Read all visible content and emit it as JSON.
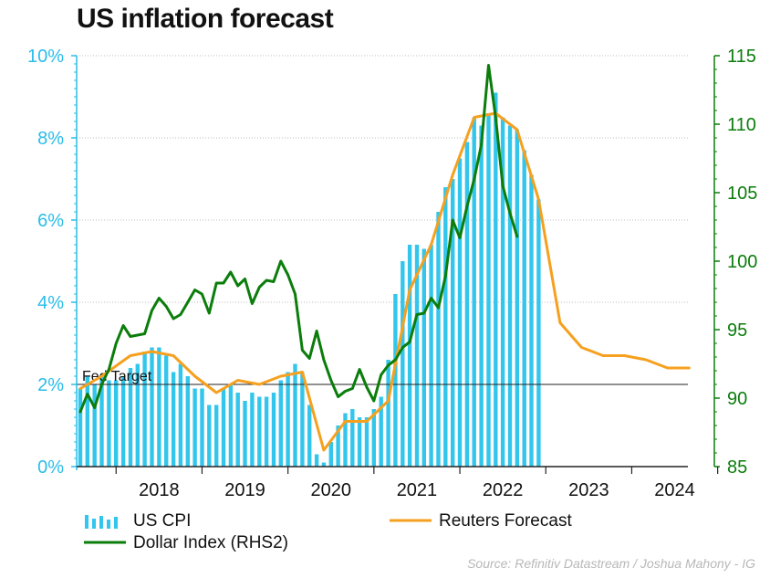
{
  "title": "US inflation forecast",
  "source": "Source: Refinitiv Datastream / Joshua Mahony - IG",
  "colors": {
    "cpi": "#33c6ec",
    "forecast": "#f6a01f",
    "dollar": "#0b7d0b",
    "left_axis": "#29bdea",
    "right_axis": "#0b7d0b",
    "fed_line": "#222222",
    "grid": "#bbbbbb"
  },
  "legend": {
    "cpi": "US CPI",
    "forecast": "Reuters Forecast",
    "dollar": "Dollar Index (RHS2)"
  },
  "fed_target_label": "Fed Target",
  "chart_data": {
    "type": "bar+line",
    "title": "US inflation forecast",
    "x_ticks": [
      "2018",
      "2019",
      "2020",
      "2021",
      "2022",
      "2023",
      "2024"
    ],
    "left_axis": {
      "ticks": [
        "0%",
        "2%",
        "4%",
        "6%",
        "8%",
        "10%"
      ],
      "ylim": [
        0,
        10
      ],
      "unit": "%"
    },
    "right_axis": {
      "ticks": [
        "85",
        "90",
        "95",
        "100",
        "105",
        "110",
        "115"
      ],
      "ylim": [
        85,
        115
      ]
    },
    "grid": true,
    "fed_target": 2.0,
    "series": [
      {
        "name": "US CPI",
        "kind": "bar",
        "axis": "left",
        "start": "2017-08",
        "frequency": "monthly",
        "values": [
          1.9,
          2.2,
          2.0,
          2.2,
          2.1,
          2.1,
          2.2,
          2.4,
          2.5,
          2.8,
          2.9,
          2.9,
          2.7,
          2.3,
          2.5,
          2.2,
          1.9,
          1.9,
          1.5,
          1.5,
          1.9,
          2.0,
          1.8,
          1.6,
          1.8,
          1.7,
          1.7,
          1.8,
          2.1,
          2.3,
          2.5,
          2.3,
          1.5,
          0.3,
          0.1,
          0.6,
          1.0,
          1.3,
          1.4,
          1.2,
          1.2,
          1.4,
          1.7,
          2.6,
          4.2,
          5.0,
          5.4,
          5.4,
          5.3,
          5.4,
          6.2,
          6.8,
          7.0,
          7.5,
          7.9,
          8.5,
          8.3,
          8.6,
          9.1,
          8.5,
          8.3,
          8.2,
          7.7,
          7.1,
          6.5
        ]
      },
      {
        "name": "Reuters Forecast",
        "kind": "line",
        "axis": "left",
        "points": [
          [
            "2017-08",
            1.9
          ],
          [
            "2017-11",
            2.2
          ],
          [
            "2018-03",
            2.7
          ],
          [
            "2018-06",
            2.8
          ],
          [
            "2018-09",
            2.7
          ],
          [
            "2018-12",
            2.2
          ],
          [
            "2019-03",
            1.8
          ],
          [
            "2019-06",
            2.1
          ],
          [
            "2019-09",
            2.0
          ],
          [
            "2019-12",
            2.2
          ],
          [
            "2020-03",
            2.3
          ],
          [
            "2020-06",
            0.4
          ],
          [
            "2020-09",
            1.1
          ],
          [
            "2020-12",
            1.1
          ],
          [
            "2021-03",
            1.6
          ],
          [
            "2021-06",
            4.3
          ],
          [
            "2021-09",
            5.4
          ],
          [
            "2021-12",
            7.1
          ],
          [
            "2022-03",
            8.5
          ],
          [
            "2022-06",
            8.6
          ],
          [
            "2022-09",
            8.2
          ],
          [
            "2022-12",
            6.5
          ],
          [
            "2023-03",
            3.5
          ],
          [
            "2023-06",
            2.9
          ],
          [
            "2023-09",
            2.7
          ],
          [
            "2023-12",
            2.7
          ],
          [
            "2024-03",
            2.6
          ],
          [
            "2024-06",
            2.4
          ],
          [
            "2024-09",
            2.4
          ]
        ]
      },
      {
        "name": "Dollar Index (RHS2)",
        "kind": "line",
        "axis": "right",
        "points": [
          [
            "2017-08",
            89.0
          ],
          [
            "2017-09",
            90.3
          ],
          [
            "2017-10",
            89.3
          ],
          [
            "2017-11",
            91.0
          ],
          [
            "2017-12",
            92.1
          ],
          [
            "2018-01",
            94.0
          ],
          [
            "2018-02",
            95.3
          ],
          [
            "2018-03",
            94.5
          ],
          [
            "2018-04",
            94.6
          ],
          [
            "2018-05",
            94.7
          ],
          [
            "2018-06",
            96.4
          ],
          [
            "2018-07",
            97.3
          ],
          [
            "2018-08",
            96.7
          ],
          [
            "2018-09",
            95.8
          ],
          [
            "2018-10",
            96.1
          ],
          [
            "2018-11",
            97.0
          ],
          [
            "2018-12",
            97.9
          ],
          [
            "2019-01",
            97.6
          ],
          [
            "2019-02",
            96.2
          ],
          [
            "2019-03",
            98.4
          ],
          [
            "2019-04",
            98.4
          ],
          [
            "2019-05",
            99.2
          ],
          [
            "2019-06",
            98.2
          ],
          [
            "2019-07",
            98.7
          ],
          [
            "2019-08",
            96.9
          ],
          [
            "2019-09",
            98.1
          ],
          [
            "2019-10",
            98.6
          ],
          [
            "2019-11",
            98.5
          ],
          [
            "2019-12",
            100.0
          ],
          [
            "2020-01",
            99.0
          ],
          [
            "2020-02",
            97.6
          ],
          [
            "2020-03",
            93.5
          ],
          [
            "2020-04",
            92.9
          ],
          [
            "2020-05",
            94.9
          ],
          [
            "2020-06",
            92.8
          ],
          [
            "2020-07",
            91.3
          ],
          [
            "2020-08",
            90.1
          ],
          [
            "2020-09",
            90.5
          ],
          [
            "2020-10",
            90.7
          ],
          [
            "2020-11",
            92.1
          ],
          [
            "2020-12",
            90.8
          ],
          [
            "2021-01",
            89.8
          ],
          [
            "2021-02",
            91.7
          ],
          [
            "2021-03",
            92.4
          ],
          [
            "2021-04",
            92.8
          ],
          [
            "2021-05",
            93.7
          ],
          [
            "2021-06",
            94.1
          ],
          [
            "2021-07",
            96.1
          ],
          [
            "2021-08",
            96.2
          ],
          [
            "2021-09",
            97.3
          ],
          [
            "2021-10",
            96.6
          ],
          [
            "2021-11",
            98.9
          ],
          [
            "2021-12",
            103.0
          ],
          [
            "2022-01",
            101.7
          ],
          [
            "2022-02",
            104.0
          ],
          [
            "2022-03",
            106.0
          ],
          [
            "2022-04",
            108.5
          ],
          [
            "2022-05",
            114.3
          ],
          [
            "2022-06",
            110.5
          ],
          [
            "2022-07",
            105.5
          ],
          [
            "2022-08",
            103.5
          ],
          [
            "2022-09",
            101.8
          ]
        ]
      }
    ]
  }
}
